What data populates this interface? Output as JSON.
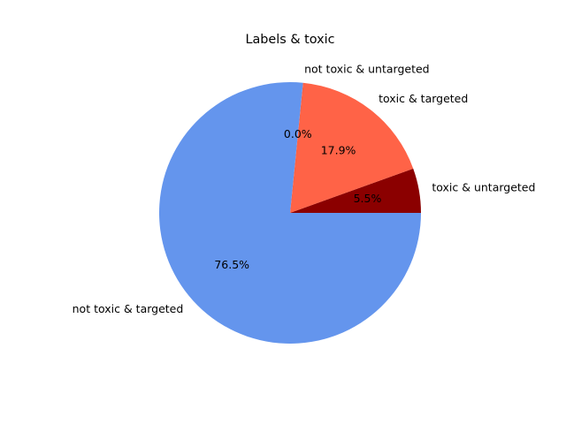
{
  "chart_data": {
    "type": "pie",
    "title": "Labels & toxic",
    "slices": [
      {
        "label": "toxic & untargeted",
        "value": 5.5,
        "pct_label": "5.5%",
        "color": "#8b0000"
      },
      {
        "label": "toxic & targeted",
        "value": 17.9,
        "pct_label": "17.9%",
        "color": "#ff6347"
      },
      {
        "label": "not toxic & untargeted",
        "value": 0.0,
        "pct_label": "0.0%",
        "color": "#d2691e"
      },
      {
        "label": "not toxic & targeted",
        "value": 76.5,
        "pct_label": "76.5%",
        "color": "#6495ed"
      }
    ],
    "start_angle_deg": 0,
    "direction": "counterclockwise",
    "legend": "none"
  }
}
